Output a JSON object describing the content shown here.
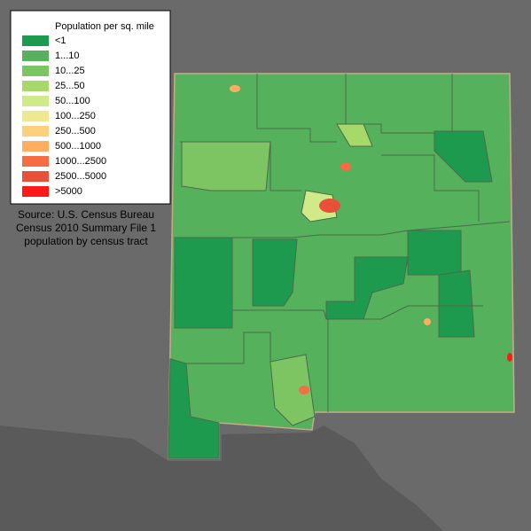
{
  "legend": {
    "title": "Population per sq. mile",
    "items": [
      {
        "label": "<1",
        "color": "#1e9a4e"
      },
      {
        "label": "1...10",
        "color": "#55b15b"
      },
      {
        "label": "10...25",
        "color": "#7dc463"
      },
      {
        "label": "25...50",
        "color": "#a6d96a"
      },
      {
        "label": "50...100",
        "color": "#d0ea8a"
      },
      {
        "label": "100...250",
        "color": "#eee891"
      },
      {
        "label": "250...500",
        "color": "#fdd17c"
      },
      {
        "label": "500...1000",
        "color": "#fdae61"
      },
      {
        "label": "1000...2500",
        "color": "#f46d43"
      },
      {
        "label": "2500...5000",
        "color": "#e8503a"
      },
      {
        "label": ">5000",
        "color": "#ff1a1a"
      }
    ]
  },
  "source": [
    "Source: U.S. Census Bureau",
    "Census 2010 Summary File 1",
    "population by census tract"
  ]
}
